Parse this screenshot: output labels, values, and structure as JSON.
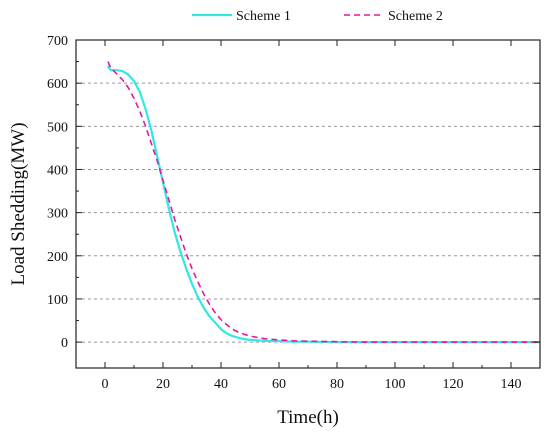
{
  "chart_data": {
    "type": "line",
    "title": "",
    "xlabel": "Time(h)",
    "ylabel": "Load Shedding(MW)",
    "xlim": [
      -10,
      150
    ],
    "ylim": [
      -60,
      700
    ],
    "xticks": [
      0,
      20,
      40,
      60,
      80,
      100,
      120,
      140
    ],
    "yticks": [
      0,
      100,
      200,
      300,
      400,
      500,
      600,
      700
    ],
    "grid": "horizontal dashed",
    "legend": "top",
    "series": [
      {
        "name": "Scheme 1",
        "color": "#33e6e6",
        "style": "solid",
        "x": [
          1,
          2,
          4,
          6,
          8,
          10,
          12,
          14,
          16,
          18,
          20,
          22,
          24,
          26,
          28,
          30,
          32,
          34,
          36,
          38,
          40,
          42,
          44,
          46,
          48,
          50,
          55,
          60,
          65,
          70,
          80,
          90,
          100,
          110,
          120,
          130,
          140,
          150
        ],
        "values": [
          640,
          630,
          630,
          628,
          620,
          605,
          580,
          540,
          490,
          430,
          370,
          310,
          255,
          210,
          170,
          135,
          105,
          80,
          60,
          45,
          30,
          20,
          14,
          10,
          7,
          5,
          3,
          2,
          1,
          1,
          0,
          0,
          0,
          0,
          0,
          0,
          0,
          0
        ]
      },
      {
        "name": "Scheme 2",
        "color": "#e6199e",
        "style": "dashed",
        "x": [
          1,
          2,
          4,
          6,
          8,
          10,
          12,
          14,
          16,
          18,
          20,
          22,
          24,
          26,
          28,
          30,
          32,
          34,
          36,
          38,
          40,
          42,
          44,
          46,
          48,
          50,
          55,
          60,
          65,
          70,
          80,
          90,
          100,
          110,
          120,
          130,
          140,
          150
        ],
        "values": [
          650,
          635,
          622,
          608,
          590,
          565,
          535,
          500,
          460,
          420,
          375,
          330,
          285,
          245,
          205,
          170,
          140,
          112,
          88,
          68,
          52,
          40,
          30,
          23,
          18,
          14,
          8,
          5,
          3,
          2,
          1,
          0,
          0,
          0,
          0,
          0,
          0,
          0
        ]
      }
    ]
  }
}
